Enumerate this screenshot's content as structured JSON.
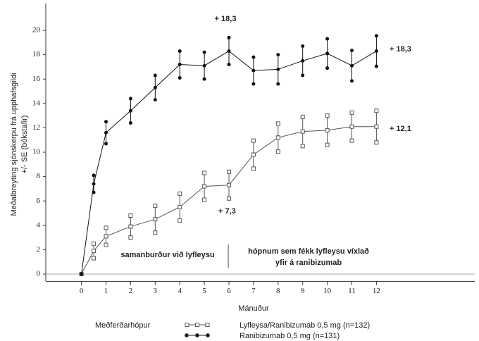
{
  "chart_data": {
    "type": "line",
    "ylabel": [
      "Meðalbreyting sjónskerpu frá upphafsgildi",
      "+/- SE (bókstafir)"
    ],
    "xlabel": "Mánuður",
    "x": [
      0,
      0.5,
      1,
      2,
      3,
      4,
      5,
      6,
      7,
      8,
      9,
      10,
      11,
      12
    ],
    "xlim": [
      -1.45,
      16
    ],
    "xticks": [
      0,
      1,
      2,
      3,
      4,
      5,
      6,
      7,
      8,
      9,
      10,
      11,
      12
    ],
    "ylim": [
      -0.6,
      22.2
    ],
    "yticks": [
      0,
      2,
      4,
      6,
      8,
      10,
      12,
      14,
      16,
      18,
      20
    ],
    "legend_title": "Meðferðarhópur",
    "series": [
      {
        "name": "Lyfleysa/Ranibizumab 0,5 mg (n=132)",
        "color": "#555555",
        "marker": "square",
        "values": [
          0,
          1.9,
          3.1,
          3.9,
          4.5,
          5.5,
          7.2,
          7.3,
          9.8,
          11.2,
          11.7,
          11.8,
          12.1,
          12.1
        ],
        "errors": [
          null,
          0.6,
          0.7,
          0.9,
          1.1,
          1.1,
          1.1,
          1.1,
          1.15,
          1.15,
          1.2,
          1.2,
          1.15,
          1.3
        ]
      },
      {
        "name": "Ranibizumab 0,5 mg (n=131)",
        "color": "#111111",
        "marker": "circle",
        "values": [
          0,
          7.4,
          11.6,
          13.4,
          15.3,
          17.2,
          17.1,
          18.3,
          16.7,
          16.8,
          17.5,
          18.1,
          17.1,
          18.3
        ],
        "errors": [
          null,
          0.7,
          0.9,
          1.0,
          1.0,
          1.1,
          1.1,
          1.1,
          1.1,
          1.2,
          1.2,
          1.2,
          1.25,
          1.25
        ]
      }
    ],
    "annotations": [
      "+ 18,3",
      "+ 18,3",
      "+ 12,1",
      "+ 7,3",
      "samanburður við lyfleysu",
      "hópnum sem fékk lyfleysu víxlað",
      "yfir á ranibizumab"
    ]
  }
}
